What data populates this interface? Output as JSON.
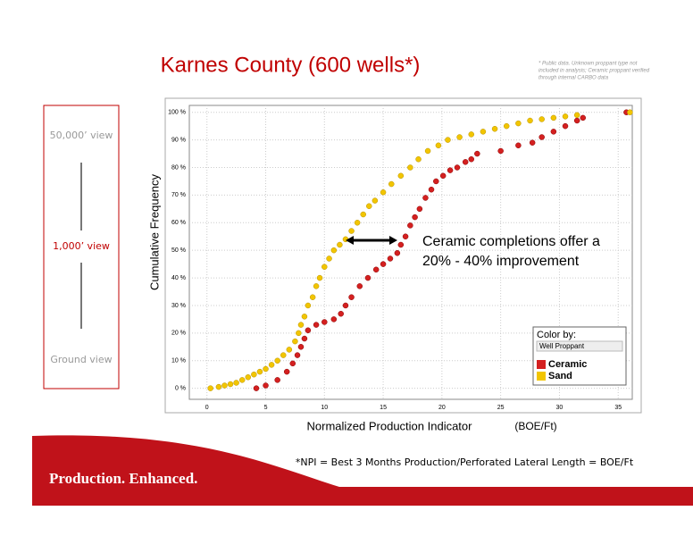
{
  "slide": {
    "title": "Karnes County (600 wells*)",
    "source_note": [
      "* Public data. Unknown proppant type not",
      "included in analysis; Ceramic proppant verified",
      "through internal CARBO data"
    ],
    "scale_views": [
      "50,000’ view",
      "1,000’ view",
      "Ground view"
    ],
    "tagline": "Production. Enhanced.",
    "footnote": "*NPI = Best 3 Months Production/Perforated Lateral Length = BOE/Ft"
  },
  "chart_data": {
    "type": "scatter",
    "x_label": "Normalized Production Indicator",
    "x_unit_label": "(BOE/Ft)",
    "y_label": "Cumulative Frequency",
    "annotation": [
      "Ceramic completions offer a",
      "20% - 40% improvement"
    ],
    "legend_title": "Color by:",
    "legend_selector": "Well Proppant",
    "legend_position": "lower-right",
    "xlim": [
      -1.5,
      36.2
    ],
    "ylim": [
      -4,
      102.5
    ],
    "grid": true,
    "xticks": [
      0,
      5,
      10,
      15,
      20,
      25,
      30,
      35
    ],
    "yticks": [
      {
        "value": 0,
        "label": "0 %"
      },
      {
        "value": 10,
        "label": "10 %"
      },
      {
        "value": 20,
        "label": "20 %"
      },
      {
        "value": 30,
        "label": "30 %"
      },
      {
        "value": 40,
        "label": "40 %"
      },
      {
        "value": 50,
        "label": "50 %"
      },
      {
        "value": 60,
        "label": "60 %"
      },
      {
        "value": 70,
        "label": "70 %"
      },
      {
        "value": 80,
        "label": "80 %"
      },
      {
        "value": 90,
        "label": "90 %"
      },
      {
        "value": 100,
        "label": "100 %"
      }
    ],
    "series": [
      {
        "name": "Ceramic",
        "color": "#d42020",
        "x": [
          4.2,
          5,
          6,
          6.8,
          7.3,
          7.7,
          8,
          8.3,
          8.6,
          9.3,
          10,
          10.8,
          11.4,
          11.8,
          12.3,
          13,
          13.7,
          14.4,
          15,
          15.6,
          16.2,
          16.5,
          16.9,
          17.3,
          17.7,
          18.1,
          18.6,
          19.1,
          19.5,
          20.1,
          20.7,
          21.3,
          22,
          22.5,
          23,
          25,
          26.5,
          27.7,
          28.5,
          29.5,
          30.5,
          31.5,
          32,
          35.7
        ],
        "values": [
          0,
          1,
          3,
          6,
          9,
          12,
          15,
          18,
          21,
          23,
          24,
          25,
          27,
          30,
          33,
          37,
          40,
          43,
          45,
          47,
          49,
          52,
          55,
          59,
          62,
          65,
          69,
          72,
          75,
          77,
          79,
          80,
          82,
          83,
          85,
          86,
          88,
          89,
          91,
          93,
          95,
          97,
          98,
          100
        ]
      },
      {
        "name": "Sand",
        "color": "#f2c500",
        "x": [
          0.3,
          1,
          1.5,
          2,
          2.5,
          3,
          3.5,
          4,
          4.5,
          5,
          5.5,
          6,
          6.5,
          7,
          7.5,
          7.8,
          8,
          8.3,
          8.6,
          9,
          9.3,
          9.6,
          10,
          10.4,
          10.8,
          11.3,
          11.8,
          12.3,
          12.8,
          13.3,
          13.8,
          14.3,
          15,
          15.7,
          16.5,
          17.3,
          18,
          18.8,
          19.7,
          20.5,
          21.5,
          22.5,
          23.5,
          24.5,
          25.5,
          26.5,
          27.5,
          28.5,
          29.5,
          30.5,
          31.5,
          36
        ],
        "values": [
          0,
          0.5,
          1,
          1.5,
          2,
          3,
          4,
          5,
          6,
          7,
          8.5,
          10,
          12,
          14,
          17,
          20,
          23,
          26,
          30,
          33,
          37,
          40,
          44,
          47,
          50,
          52,
          54,
          57,
          60,
          63,
          66,
          68,
          71,
          74,
          77,
          80,
          83,
          86,
          88,
          90,
          91,
          92,
          93,
          94,
          95,
          96,
          97,
          97.5,
          98,
          98.5,
          99,
          100
        ]
      }
    ]
  }
}
